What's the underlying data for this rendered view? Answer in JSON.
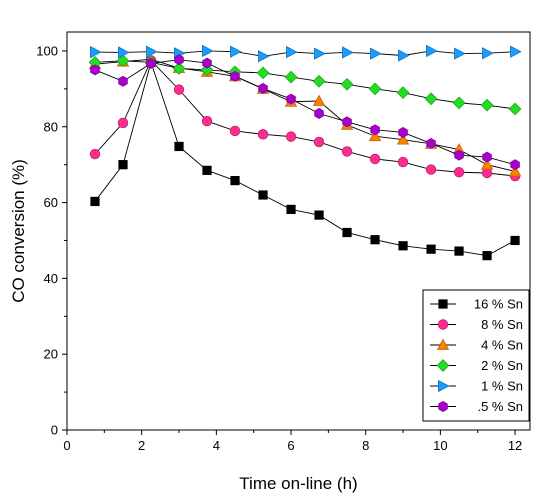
{
  "chart_data": {
    "type": "line",
    "xlabel": "Time on-line (h)",
    "ylabel": "CO conversion (%)",
    "xlim": [
      0,
      12.4
    ],
    "ylim": [
      0,
      105
    ],
    "xticks": [
      0,
      2,
      4,
      6,
      8,
      10,
      12
    ],
    "yticks": [
      0,
      20,
      40,
      60,
      80,
      100
    ],
    "legend_position": "bottom-right",
    "grid": false,
    "x": [
      0.75,
      1.5,
      2.25,
      3.0,
      3.75,
      4.5,
      5.25,
      6.0,
      6.75,
      7.5,
      8.25,
      9.0,
      9.75,
      10.5,
      11.25,
      12.0
    ],
    "series": [
      {
        "name": "16 % Sn",
        "marker": "square",
        "color": "#000000",
        "values": [
          60.3,
          70,
          97,
          74.8,
          68.5,
          65.8,
          62,
          58.2,
          56.7,
          52.1,
          50.2,
          48.6,
          47.7,
          47.2,
          46,
          50
        ]
      },
      {
        "name": "8 % Sn",
        "marker": "circle",
        "color": "#ff2b8e",
        "values": [
          72.8,
          81,
          97.5,
          89.8,
          81.5,
          78.9,
          78,
          77.4,
          76,
          73.5,
          71.5,
          70.7,
          68.7,
          68,
          67.8,
          67
        ]
      },
      {
        "name": "4 % Sn",
        "marker": "triangle-up",
        "color": "#ff8000",
        "values": [
          96.5,
          97.2,
          97.8,
          95.5,
          94.5,
          93.3,
          90,
          86.6,
          86.8,
          80.5,
          77.5,
          76.6,
          75.5,
          74,
          70,
          68.2
        ]
      },
      {
        "name": "2 % Sn",
        "marker": "diamond",
        "color": "#22dd22",
        "values": [
          97,
          97.4,
          97,
          95.4,
          95,
          94.5,
          94.2,
          93.1,
          92,
          91.2,
          90,
          89,
          87.4,
          86.3,
          85.7,
          84.7
        ]
      },
      {
        "name": "1 % Sn",
        "marker": "triangle-right",
        "color": "#1a9cff",
        "values": [
          99.7,
          99.6,
          99.8,
          99.4,
          100,
          99.8,
          98.6,
          99.7,
          99.3,
          99.6,
          99.3,
          98.8,
          100,
          99.3,
          99.4,
          99.8
        ]
      },
      {
        "name": ".5 % Sn",
        "marker": "hexagon",
        "color": "#aa00cc",
        "values": [
          95,
          92,
          96.7,
          97.7,
          96.8,
          93.3,
          90.1,
          87.3,
          83.5,
          81.3,
          79.2,
          78.5,
          75.6,
          72.5,
          72,
          70
        ]
      }
    ]
  }
}
